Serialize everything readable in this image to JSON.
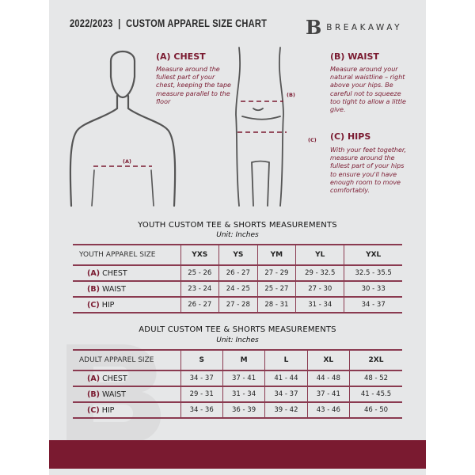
{
  "header": {
    "title": "2022/2023  |  CUSTOM APPAREL SIZE CHART",
    "logo_text": "BREAKAWAY",
    "logo_mark": "B"
  },
  "colors": {
    "accent": "#7a1a30",
    "background": "#e6e7e8"
  },
  "measures": {
    "chest": {
      "heading": "(A) CHEST",
      "text": "Measure around the fullest part of your chest, keeping the tape measure parallel to the floor",
      "label": "(A)"
    },
    "waist": {
      "heading": "(B) WAIST",
      "text": "Measure around your natural waistline – right above your hips. Be careful not to squeeze too tight to allow a little give.",
      "label": "(B)"
    },
    "hips": {
      "heading": "(C) HIPS",
      "text": "With your feet together, measure around the fullest part of your hips to ensure you'll have enough room to move comfortably.",
      "label": "(C)"
    }
  },
  "youth": {
    "title": "YOUTH CUSTOM TEE & SHORTS MEASUREMENTS",
    "unit": "Unit: Inches",
    "header": [
      "YOUTH APPAREL SIZE",
      "YXS",
      "YS",
      "YM",
      "YL",
      "YXL"
    ],
    "rows": [
      {
        "code": "(A)",
        "name": "CHEST",
        "values": [
          "25 - 26",
          "26 - 27",
          "27 - 29",
          "29 - 32.5",
          "32.5 - 35.5"
        ]
      },
      {
        "code": "(B)",
        "name": "WAIST",
        "values": [
          "23 - 24",
          "24 - 25",
          "25 - 27",
          "27 - 30",
          "30 - 33"
        ]
      },
      {
        "code": "(C)",
        "name": "HIP",
        "values": [
          "26 - 27",
          "27 - 28",
          "28 - 31",
          "31 - 34",
          "34 - 37"
        ]
      }
    ]
  },
  "adult": {
    "title": "ADULT CUSTOM TEE & SHORTS MEASUREMENTS",
    "unit": "Unit: Inches",
    "header": [
      "ADULT APPAREL SIZE",
      "S",
      "M",
      "L",
      "XL",
      "2XL"
    ],
    "rows": [
      {
        "code": "(A)",
        "name": "CHEST",
        "values": [
          "34 - 37",
          "37 - 41",
          "41 - 44",
          "44 - 48",
          "48 - 52"
        ]
      },
      {
        "code": "(B)",
        "name": "WAIST",
        "values": [
          "29 - 31",
          "31 - 34",
          "34 - 37",
          "37 - 41",
          "41 - 45.5"
        ]
      },
      {
        "code": "(C)",
        "name": "HIP",
        "values": [
          "34 - 36",
          "36 - 39",
          "39 - 42",
          "43 - 46",
          "46 - 50"
        ]
      }
    ]
  }
}
